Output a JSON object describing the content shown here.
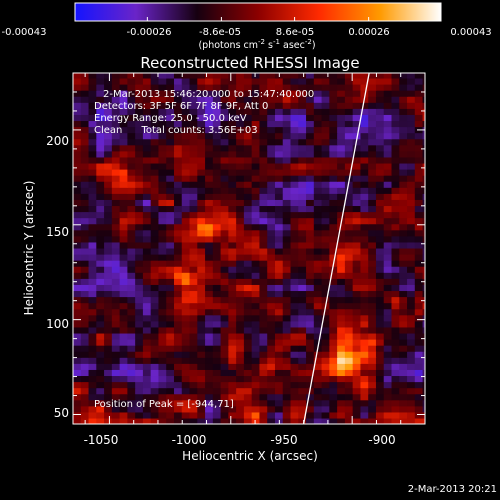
{
  "colorbar": {
    "tick_labels": [
      "-0.00043",
      "-0.00026",
      "-8.6e-05",
      "8.6e-05",
      "0.00026",
      "0.00043"
    ],
    "tick_values": [
      -0.00043,
      -0.00026,
      -8.6e-05,
      8.6e-05,
      0.00026,
      0.00043
    ],
    "range": [
      -0.00043,
      0.00043
    ],
    "units_prefix": "(photons cm",
    "units_exp1": "-2",
    "units_mid": " s",
    "units_exp2": "-1",
    "units_mid2": " asec",
    "units_exp3": "-2",
    "units_suffix": ")",
    "colors": [
      "#1414ff",
      "#6a24c8",
      "#160010",
      "#8c0000",
      "#ff2a00",
      "#ff9a00",
      "#ffffff"
    ]
  },
  "chart_data": {
    "type": "heatmap",
    "title": "Reconstructed RHESSI Image",
    "xlabel": "Heliocentric X (arcsec)",
    "ylabel": "Heliocentric Y (arcsec)",
    "xlim": [
      -1065,
      -920
    ],
    "ylim": [
      45,
      230
    ],
    "x_ticks": [
      -1050,
      -1000,
      -950,
      -900
    ],
    "x_tick_labels": [
      "-1050",
      "-1000",
      "-950",
      "-900"
    ],
    "y_ticks": [
      50,
      100,
      150,
      200
    ],
    "y_tick_labels": [
      "50",
      "100",
      "150",
      "200"
    ],
    "limb_line": {
      "x": [
        -970,
        -943
      ],
      "y": [
        45,
        230
      ]
    },
    "peak_position": {
      "x": -944,
      "y": 71
    },
    "sources": [
      {
        "x": -955,
        "y": 75,
        "amp": 1.0,
        "width": 9
      },
      {
        "x": -942,
        "y": 88,
        "amp": 0.6,
        "width": 7
      },
      {
        "x": -1020,
        "y": 122,
        "amp": 0.8,
        "width": 7
      },
      {
        "x": -1010,
        "y": 147,
        "amp": 0.55,
        "width": 7
      },
      {
        "x": -955,
        "y": 133,
        "amp": 0.55,
        "width": 7
      },
      {
        "x": -1055,
        "y": 52,
        "amp": 0.65,
        "width": 8
      },
      {
        "x": -990,
        "y": 52,
        "amp": 0.55,
        "width": 8
      },
      {
        "x": -1045,
        "y": 178,
        "amp": 0.55,
        "width": 5
      },
      {
        "x": -985,
        "y": 75,
        "amp": 0.55,
        "width": 6
      },
      {
        "x": -932,
        "y": 110,
        "amp": 0.45,
        "width": 6
      }
    ],
    "annotations": {
      "time": "2-Mar-2013 15:46:20.000 to 15:47:40.000",
      "detectors": "Detectors: 3F 5F 6F 7F 8F 9F, Att 0",
      "energy": "Energy Range: 25.0 - 50.0 keV",
      "clean": "Clean      Total counts: 3.56E+03",
      "peak": "Position of Peak = [-944,71]"
    }
  },
  "footer": {
    "timestamp": "2-Mar-2013 20:21"
  }
}
